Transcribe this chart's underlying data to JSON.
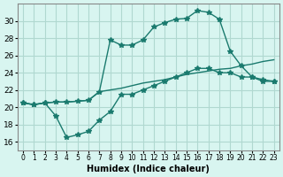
{
  "xlabel": "Humidex (Indice chaleur)",
  "ylabel": "",
  "background_color": "#d8f5f0",
  "grid_color": "#b0d8d0",
  "line_color": "#1a7a6e",
  "xlim": [
    -0.5,
    23.5
  ],
  "ylim": [
    15,
    32
  ],
  "xticks": [
    0,
    1,
    2,
    3,
    4,
    5,
    6,
    7,
    8,
    9,
    10,
    11,
    12,
    13,
    14,
    15,
    16,
    17,
    18,
    19,
    20,
    21,
    22,
    23
  ],
  "yticks": [
    16,
    18,
    20,
    22,
    24,
    26,
    28,
    30
  ],
  "line1_x": [
    0,
    1,
    2,
    3,
    4,
    5,
    6,
    7,
    8,
    9,
    10,
    11,
    12,
    13,
    14,
    15,
    16,
    17,
    18,
    19,
    20,
    21,
    22,
    23
  ],
  "line1_y": [
    20.5,
    20.3,
    20.5,
    20.6,
    20.6,
    20.7,
    20.8,
    21.8,
    27.8,
    27.2,
    27.2,
    27.8,
    29.3,
    29.8,
    30.2,
    30.3,
    31.2,
    31.0,
    30.2,
    26.5,
    24.8,
    23.5,
    23.2,
    23.0
  ],
  "line2_x": [
    0,
    1,
    2,
    3,
    4,
    5,
    6,
    7,
    8,
    9,
    10,
    11,
    12,
    13,
    14,
    15,
    16,
    17,
    18,
    19,
    20,
    21,
    22,
    23
  ],
  "line2_y": [
    20.5,
    20.3,
    20.5,
    19.0,
    16.5,
    16.8,
    17.2,
    18.5,
    19.5,
    21.5,
    21.5,
    22.0,
    22.5,
    23.0,
    23.5,
    24.0,
    24.5,
    24.5,
    24.0,
    24.0,
    23.5,
    23.5,
    23.0,
    23.0
  ],
  "line3_x": [
    0,
    1,
    2,
    3,
    4,
    5,
    6,
    7,
    8,
    9,
    10,
    11,
    12,
    13,
    14,
    15,
    16,
    17,
    18,
    19,
    20,
    21,
    22,
    23
  ],
  "line3_y": [
    20.5,
    20.3,
    20.5,
    20.6,
    20.6,
    20.7,
    20.8,
    21.8,
    22.0,
    22.2,
    22.5,
    22.8,
    23.0,
    23.2,
    23.5,
    23.8,
    24.0,
    24.2,
    24.4,
    24.5,
    24.8,
    25.0,
    25.3,
    25.5
  ]
}
